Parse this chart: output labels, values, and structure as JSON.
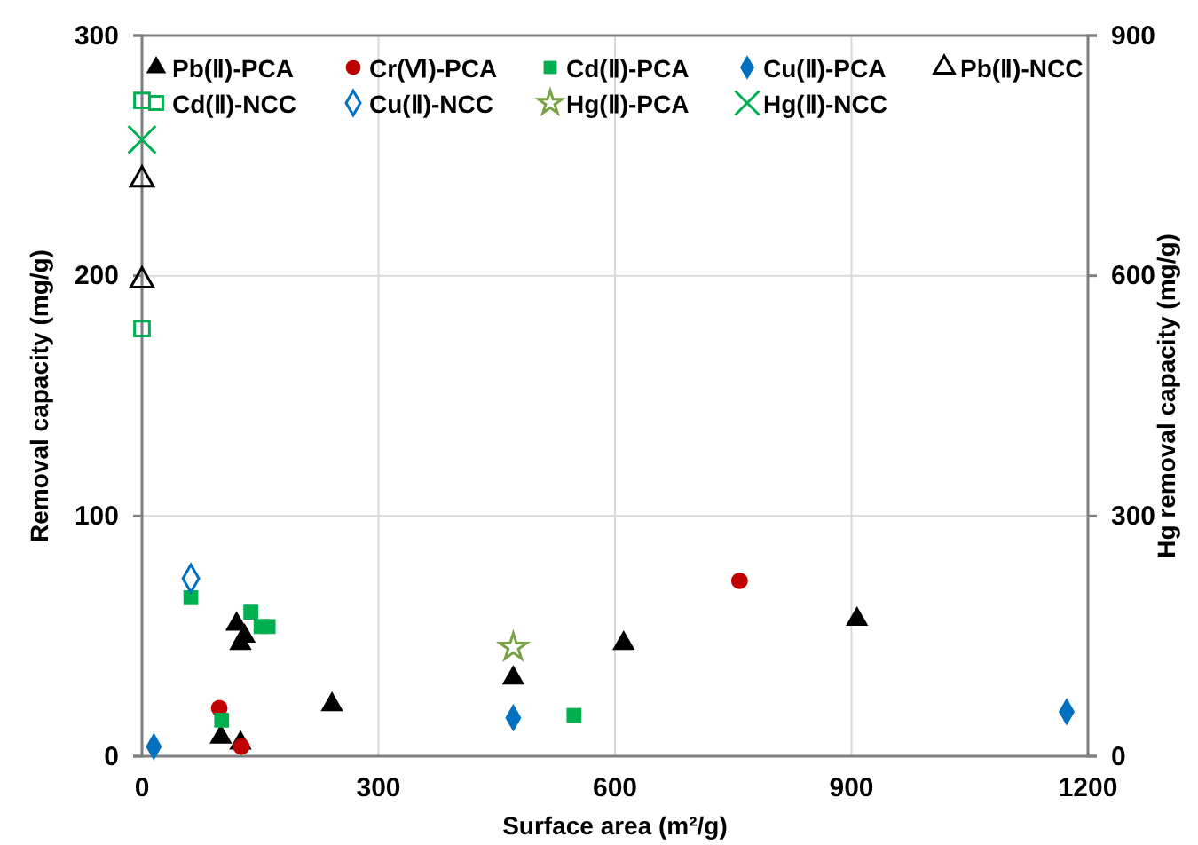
{
  "chart_data": {
    "type": "scatter",
    "xlabel": "Surface area (m²/g)",
    "ylabel": "Removal capacity (mg/g)",
    "y2label": "Hg removal capacity (mg/g)",
    "xlim": [
      0,
      1200
    ],
    "xticks": [
      0,
      300,
      600,
      900,
      1200
    ],
    "ylim": [
      0,
      300
    ],
    "yticks": [
      0,
      100,
      200,
      300
    ],
    "y2lim": [
      0,
      900
    ],
    "y2ticks": [
      0,
      300,
      600,
      900
    ],
    "grid": true,
    "legend": "top",
    "series": [
      {
        "name": "Pb(Ⅱ)-PCA",
        "color": "#000000",
        "marker": "triangle",
        "x": [
          120,
          125,
          130,
          100,
          125,
          241,
          471,
          611,
          907
        ],
        "values": [
          55,
          47,
          50,
          8,
          5.5,
          21.5,
          32.5,
          47,
          57
        ]
      },
      {
        "name": "Cr(Ⅵ)-PCA",
        "color": "#c00000",
        "marker": "circle",
        "x": [
          98,
          126,
          758
        ],
        "values": [
          20,
          4,
          73
        ]
      },
      {
        "name": "Cd(Ⅱ)-PCA",
        "color": "#00b050",
        "marker": "square",
        "x": [
          62,
          138,
          151,
          160,
          101,
          548
        ],
        "values": [
          66,
          60,
          54,
          54,
          15,
          17
        ]
      },
      {
        "name": "Cu(Ⅱ)-PCA",
        "color": "#0070c0",
        "marker": "diamond",
        "x": [
          15,
          471,
          1173
        ],
        "values": [
          4,
          16,
          18.5
        ]
      },
      {
        "name": "Pb(Ⅱ)-NCC",
        "color": "#000000",
        "marker": "triangle",
        "x": [
          0,
          0
        ],
        "values": [
          240,
          198
        ]
      },
      {
        "name": "Cd(Ⅱ)-NCC",
        "color": "#00b050",
        "marker": "square",
        "x": [
          0,
          0
        ],
        "values": [
          273,
          178
        ]
      },
      {
        "name": "Cu(Ⅱ)-NCC",
        "color": "#0070c0",
        "marker": "diamond",
        "x": [
          62
        ],
        "values": [
          74
        ]
      },
      {
        "name": "Hg(Ⅱ)-PCA",
        "color": "#77a345",
        "marker": "star",
        "axis": "y2",
        "x": [
          471
        ],
        "values": [
          136
        ]
      },
      {
        "name": "Hg(Ⅱ)-NCC",
        "color": "#00b050",
        "marker": "cross",
        "axis": "y2",
        "x": [
          0
        ],
        "values": [
          770
        ]
      }
    ]
  }
}
